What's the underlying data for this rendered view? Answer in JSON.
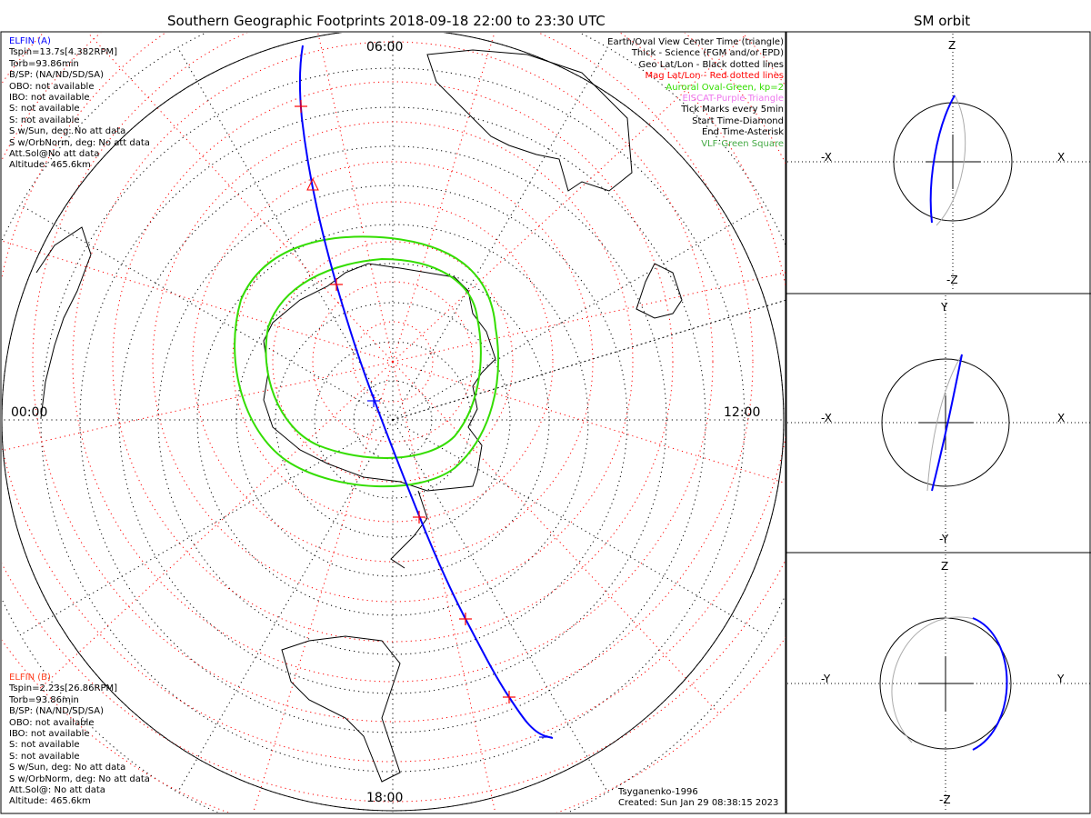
{
  "title": "Southern Geographic Footprints 2018-09-18 22:00 to 23:30 UTC",
  "right_title": "SM orbit",
  "time_labels": {
    "top": "06:00",
    "left": "00:00",
    "right": "12:00",
    "bottom": "18:00"
  },
  "elfin_a": {
    "name": "ELFIN (A)",
    "color": "#0000ff",
    "lines": [
      "Tspin=13.7s[4.382RPM]",
      "Torb=93.86min",
      "B/SP: (NA/ND/SD/SA)",
      "OBO: not available",
      "IBO: not available",
      "S: not available",
      "S: not available",
      "S w/Sun, deg: No att data",
      "S w/OrbNorm, deg: No att data",
      "Att.Sol@No att data",
      "Altitude: 465.6km"
    ]
  },
  "elfin_b": {
    "name": "ELFIN (B)",
    "color": "#ff4020",
    "lines": [
      "Tspin=2.23s[26.86RPM]",
      "Torb=93.86min",
      "B/SP: (NA/ND/SD/SA)",
      "OBO: not available",
      "IBO: not available",
      "S: not available",
      "S: not available",
      "S w/Sun, deg: No att data",
      "S w/OrbNorm, deg: No att data",
      "Att.Sol@: No att data",
      "Altitude: 465.6km"
    ]
  },
  "legend": [
    {
      "text": "Earth/Oval View Center Time (triangle)",
      "color": "#000000"
    },
    {
      "text": "Thick - Science (FGM and/or EPD)",
      "color": "#000000"
    },
    {
      "text": "Geo Lat/Lon - Black dotted lines",
      "color": "#000000"
    },
    {
      "text": "Mag Lat/Lon - Red dotted lines",
      "color": "#ff0000"
    },
    {
      "text": "Auroral Oval-Green, kp=2",
      "color": "#33dd00"
    },
    {
      "text": "EISCAT-Purple Triangle",
      "color": "#ee77ee"
    },
    {
      "text": "Tick Marks every 5min",
      "color": "#000000"
    },
    {
      "text": "Start Time-Diamond",
      "color": "#000000"
    },
    {
      "text": "End Time-Asterisk",
      "color": "#000000"
    },
    {
      "text": "VLF-Green Square",
      "color": "#44aa44"
    }
  ],
  "footer": {
    "model": "Tsyganenko-1996",
    "created": "Created: Sun Jan 29 08:38:15 2023"
  },
  "orbit_panels": [
    {
      "top": "Z",
      "bottom": "-Z",
      "left": "-X",
      "right": "X"
    },
    {
      "top": "Y",
      "bottom": "-Y",
      "left": "-X",
      "right": "X"
    },
    {
      "top": "Z",
      "bottom": "-Z",
      "left": "-Y",
      "right": "Y"
    }
  ],
  "colors": {
    "track": "#0000ff",
    "oval": "#33dd00",
    "mag_grid": "#ff0000",
    "geo_grid": "#000000"
  }
}
